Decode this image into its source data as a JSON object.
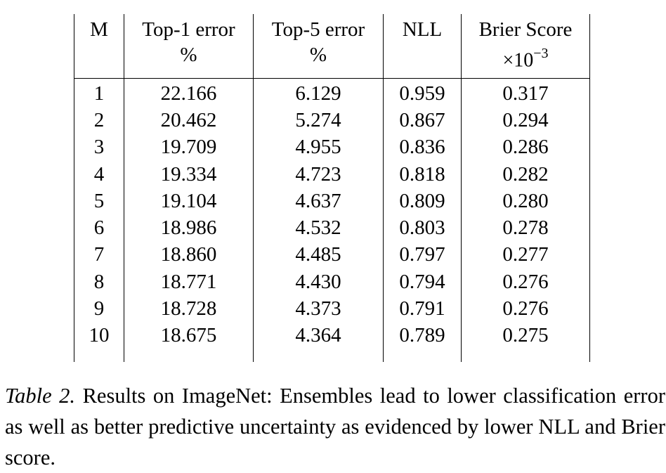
{
  "table": {
    "headers": [
      {
        "line1": "M",
        "line2": ""
      },
      {
        "line1": "Top-1 error",
        "line2": "%"
      },
      {
        "line1": "Top-5 error",
        "line2": "%"
      },
      {
        "line1": "NLL",
        "line2": ""
      },
      {
        "line1": "Brier Score",
        "line2_prefix": "×10",
        "line2_exp": "−3"
      }
    ],
    "rows": [
      [
        "1",
        "22.166",
        "6.129",
        "0.959",
        "0.317"
      ],
      [
        "2",
        "20.462",
        "5.274",
        "0.867",
        "0.294"
      ],
      [
        "3",
        "19.709",
        "4.955",
        "0.836",
        "0.286"
      ],
      [
        "4",
        "19.334",
        "4.723",
        "0.818",
        "0.282"
      ],
      [
        "5",
        "19.104",
        "4.637",
        "0.809",
        "0.280"
      ],
      [
        "6",
        "18.986",
        "4.532",
        "0.803",
        "0.278"
      ],
      [
        "7",
        "18.860",
        "4.485",
        "0.797",
        "0.277"
      ],
      [
        "8",
        "18.771",
        "4.430",
        "0.794",
        "0.276"
      ],
      [
        "9",
        "18.728",
        "4.373",
        "0.791",
        "0.276"
      ],
      [
        "10",
        "18.675",
        "4.364",
        "0.789",
        "0.275"
      ]
    ]
  },
  "caption": {
    "label": "Table 2.",
    "text": " Results on ImageNet: Ensembles lead to lower classification error as well as better predictive uncertainty as evidenced by lower NLL and Brier score."
  }
}
